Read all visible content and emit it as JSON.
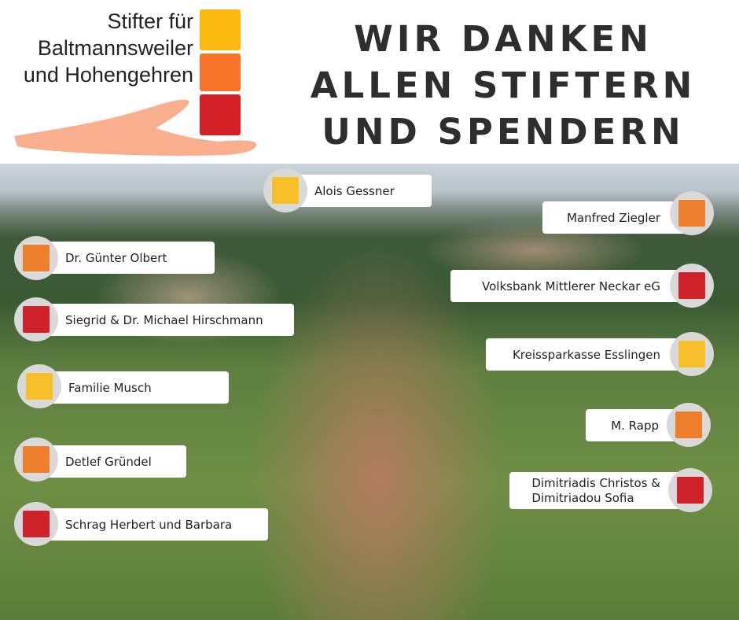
{
  "logo": {
    "lines": [
      "Stifter für",
      "Baltmannsweiler",
      "und Hohengehren"
    ],
    "colors": {
      "yellow": "#fbb80f",
      "orange": "#f7742a",
      "red": "#d42027",
      "hand": "#f9ae8e"
    }
  },
  "title": {
    "lines": [
      "WIR DANKEN",
      "ALLEN STIFTERN",
      "UND SPENDERN"
    ],
    "color": "#2e2e2e"
  },
  "photo": {
    "description_icon": "aerial-village-photo"
  },
  "donors": [
    {
      "name": "Alois Gessner",
      "color": "#f7c02a"
    },
    {
      "name": "Manfred Ziegler",
      "color": "#ee7f2d"
    },
    {
      "name": "Dr. Günter Olbert",
      "color": "#ee7f2d"
    },
    {
      "name": "Volksbank Mittlerer Neckar eG",
      "color": "#d0222b"
    },
    {
      "name": "Siegrid & Dr. Michael Hirschmann",
      "color": "#d0222b"
    },
    {
      "name": "Kreissparkasse Esslingen",
      "color": "#f7c02a"
    },
    {
      "name": "Familie Musch",
      "color": "#f7c02a"
    },
    {
      "name": "M. Rapp",
      "color": "#ee7f2d"
    },
    {
      "name": "Detlef Gründel",
      "color": "#ee7f2d"
    },
    {
      "name": "Dimitriadis Christos & Dimitriadou Sofia",
      "lines": [
        "Dimitriadis Christos &",
        "Dimitriadou Sofia"
      ],
      "color": "#d0222b"
    },
    {
      "name": "Schrag Herbert und Barbara",
      "color": "#d0222b"
    }
  ]
}
